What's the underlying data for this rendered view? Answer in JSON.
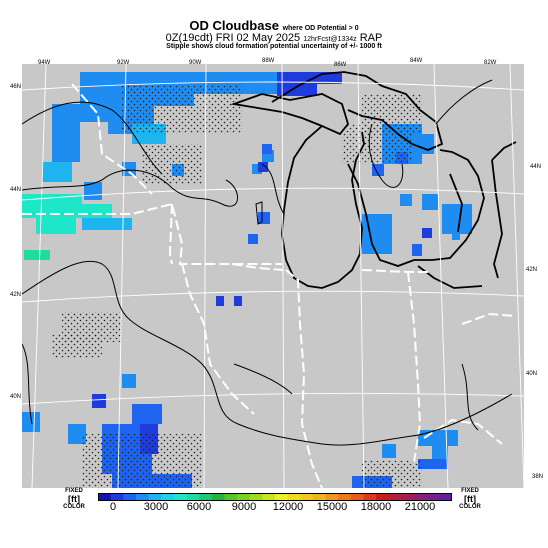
{
  "header": {
    "title": "OD Cloudbase",
    "title_note": "where OD Potential > 0",
    "line2_time": "0Z(19cdt) FRI 02 May 2025",
    "line2_valid": "12hrFcst@1334z",
    "line2_model": "RAP",
    "line3": "Stipple shows cloud formation potential uncertainty of +/- 1000 ft"
  },
  "map": {
    "lon_labels": [
      "94W",
      "92W",
      "90W",
      "88W",
      "86W",
      "84W",
      "82W"
    ],
    "lat_labels_left": [
      "46N",
      "44N",
      "42N",
      "40N"
    ],
    "lat_labels_right": [
      "44N",
      "42N",
      "40N",
      "38N"
    ],
    "background_color": "#c8c8c8"
  },
  "colorbar": {
    "left_label_top": "FIXED",
    "left_label_mid": "[ft]",
    "left_label_bottom": "COLOR",
    "right_label_top": "FIXED",
    "right_label_mid": "[ft]",
    "right_label_bottom": "COLOR",
    "ticks": [
      "0",
      "3000",
      "6000",
      "9000",
      "12000",
      "15000",
      "18000",
      "21000"
    ],
    "colors": [
      "#1414b4",
      "#1e3cdc",
      "#1e64f0",
      "#1e8cf0",
      "#1eb4f0",
      "#1ed2e6",
      "#1ee6c8",
      "#1edca0",
      "#1ec878",
      "#28b43c",
      "#50c828",
      "#78d21e",
      "#a0dc1e",
      "#c8e61e",
      "#f0f01e",
      "#f0dc1e",
      "#f0c81e",
      "#f0b41e",
      "#f0961e",
      "#f0781e",
      "#e65a1e",
      "#dc3c1e",
      "#c81e1e",
      "#b41e3c",
      "#a01e5a",
      "#8c1e78",
      "#781e96",
      "#641ea0"
    ]
  }
}
